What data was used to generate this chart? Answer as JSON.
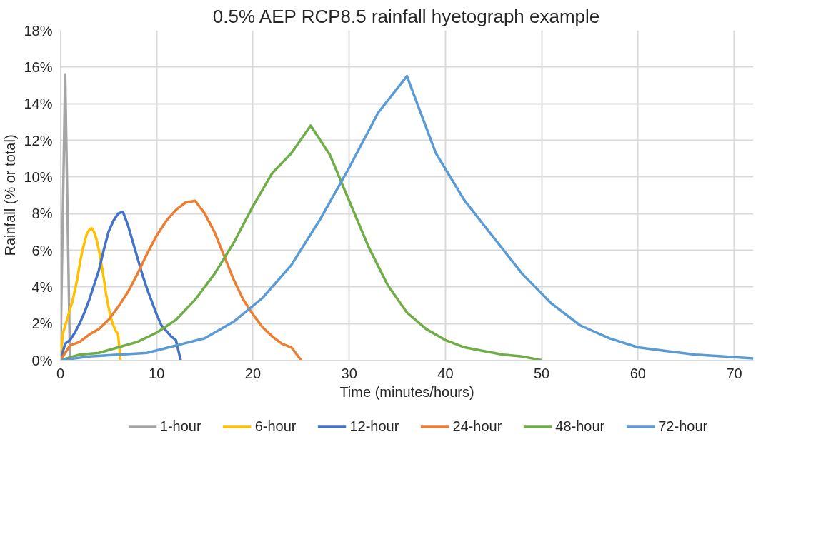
{
  "chart_data": {
    "type": "line",
    "title": "0.5% AEP RCP8.5 rainfall hyetograph example",
    "xlabel": "Time (minutes/hours)",
    "ylabel": "Rainfall (% or total)",
    "xlim": [
      0,
      72
    ],
    "xticks": [
      0,
      10,
      20,
      30,
      40,
      50,
      60,
      70
    ],
    "ylim": [
      0,
      18
    ],
    "yticks": [
      {
        "value": 0,
        "label": "0%"
      },
      {
        "value": 2,
        "label": "2%"
      },
      {
        "value": 4,
        "label": "4%"
      },
      {
        "value": 6,
        "label": "6%"
      },
      {
        "value": 8,
        "label": "8%"
      },
      {
        "value": 10,
        "label": "10%"
      },
      {
        "value": 12,
        "label": "12%"
      },
      {
        "value": 14,
        "label": "14%"
      },
      {
        "value": 16,
        "label": "16%"
      },
      {
        "value": 18,
        "label": "18%"
      }
    ],
    "grid": true,
    "legend": "bottom",
    "marker": "none",
    "line_style": "solid",
    "series": [
      {
        "name": "1-hour",
        "color": "#a5a5a5",
        "x": [
          0,
          0.5,
          1
        ],
        "values": [
          0,
          15.6,
          0
        ]
      },
      {
        "name": "6-hour",
        "color": "#ffc000",
        "x": [
          0,
          0.25,
          0.5,
          0.75,
          1,
          1.25,
          1.5,
          1.75,
          2,
          2.25,
          2.5,
          2.75,
          3,
          3.25,
          3.5,
          3.75,
          4,
          4.25,
          4.5,
          4.75,
          5,
          5.25,
          5.5,
          5.75,
          6,
          6.25
        ],
        "values": [
          0,
          1.4,
          1.9,
          2.3,
          2.8,
          3.2,
          3.8,
          4.4,
          5.2,
          5.9,
          6.4,
          6.9,
          7.1,
          7.2,
          7.0,
          6.6,
          6.0,
          5.3,
          4.5,
          3.6,
          2.9,
          2.3,
          1.9,
          1.6,
          1.4,
          0
        ]
      },
      {
        "name": "12-hour",
        "color": "#4472c4",
        "x": [
          0,
          0.5,
          1,
          1.5,
          2,
          2.5,
          3,
          3.5,
          4,
          4.5,
          5,
          5.5,
          6,
          6.5,
          7,
          7.5,
          8,
          8.5,
          9,
          9.5,
          10,
          10.5,
          11,
          11.5,
          12,
          12.5
        ],
        "values": [
          0,
          0.9,
          1.1,
          1.5,
          2.0,
          2.6,
          3.3,
          4.1,
          4.9,
          6.0,
          7.0,
          7.6,
          8.0,
          8.1,
          7.4,
          6.5,
          5.6,
          4.7,
          3.9,
          3.2,
          2.5,
          1.9,
          1.6,
          1.3,
          1.1,
          0
        ]
      },
      {
        "name": "24-hour",
        "color": "#ed7d31",
        "x": [
          0,
          1,
          2,
          3,
          4,
          5,
          6,
          7,
          8,
          9,
          10,
          11,
          12,
          13,
          14,
          15,
          16,
          17,
          18,
          19,
          20,
          21,
          22,
          23,
          24,
          25
        ],
        "values": [
          0,
          0.8,
          1.0,
          1.4,
          1.7,
          2.2,
          2.9,
          3.7,
          4.7,
          5.8,
          6.8,
          7.6,
          8.2,
          8.6,
          8.7,
          8.0,
          7.0,
          5.7,
          4.4,
          3.3,
          2.5,
          1.8,
          1.3,
          0.9,
          0.7,
          0
        ]
      },
      {
        "name": "48-hour",
        "color": "#70ad47",
        "x": [
          0,
          2,
          4,
          6,
          8,
          10,
          12,
          14,
          16,
          18,
          20,
          22,
          24,
          26,
          28,
          30,
          32,
          34,
          36,
          38,
          40,
          42,
          44,
          46,
          48,
          50
        ],
        "values": [
          0,
          0.3,
          0.4,
          0.7,
          1.0,
          1.5,
          2.2,
          3.3,
          4.7,
          6.4,
          8.4,
          10.2,
          11.3,
          12.8,
          11.2,
          8.7,
          6.2,
          4.1,
          2.6,
          1.7,
          1.1,
          0.7,
          0.5,
          0.3,
          0.2,
          0
        ]
      },
      {
        "name": "72-hour",
        "color": "#5b9bd5",
        "x": [
          0,
          3,
          6,
          9,
          12,
          15,
          18,
          21,
          24,
          27,
          30,
          33,
          36,
          39,
          42,
          45,
          48,
          51,
          54,
          57,
          60,
          63,
          66,
          69,
          72
        ],
        "values": [
          0,
          0.2,
          0.3,
          0.4,
          0.8,
          1.2,
          2.1,
          3.4,
          5.2,
          7.7,
          10.5,
          13.5,
          15.5,
          11.3,
          8.7,
          6.7,
          4.7,
          3.1,
          1.9,
          1.2,
          0.7,
          0.5,
          0.3,
          0.2,
          0.1
        ]
      }
    ]
  }
}
